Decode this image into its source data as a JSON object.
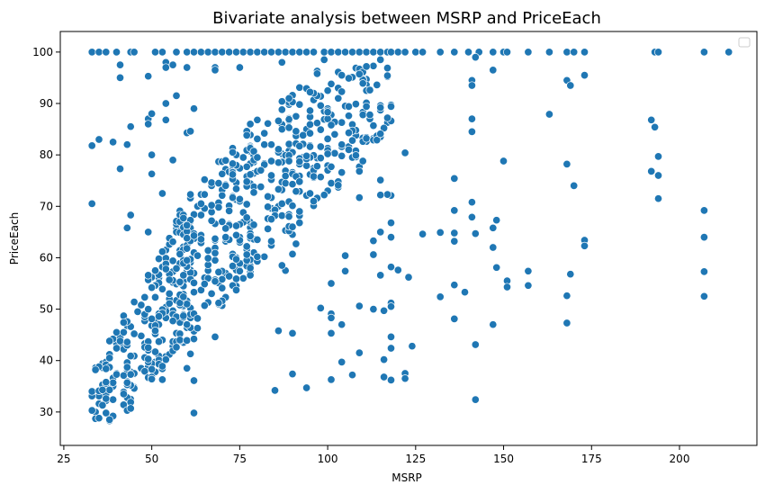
{
  "chart_data": {
    "type": "scatter",
    "title": "Bivariate analysis between MSRP and PriceEach",
    "xlabel": "MSRP",
    "ylabel": "PriceEach",
    "xlim": [
      24,
      222
    ],
    "ylim": [
      23.5,
      104
    ],
    "xticks": [
      25,
      50,
      75,
      100,
      125,
      150,
      175,
      200
    ],
    "yticks": [
      30,
      40,
      50,
      60,
      70,
      80,
      90,
      100
    ],
    "xtick_labels": [
      "25",
      "50",
      "75",
      "100",
      "125",
      "150",
      "175",
      "200"
    ],
    "ytick_labels": [
      "30",
      "40",
      "50",
      "60",
      "70",
      "80",
      "90",
      "100"
    ],
    "grid": false,
    "legend": "top-right (empty)",
    "marker_color": "#1f77b4",
    "series": [
      {
        "values": [
          [
            33,
            100
          ],
          [
            35,
            100
          ],
          [
            37,
            100
          ],
          [
            40,
            100
          ],
          [
            44,
            100
          ],
          [
            45,
            100
          ],
          [
            51,
            100
          ],
          [
            53,
            100
          ],
          [
            57,
            100
          ],
          [
            60,
            100
          ],
          [
            62,
            100
          ],
          [
            64,
            100
          ],
          [
            66,
            100
          ],
          [
            68,
            100
          ],
          [
            70,
            100
          ],
          [
            72,
            100
          ],
          [
            74,
            100
          ],
          [
            76,
            100
          ],
          [
            78,
            100
          ],
          [
            80,
            100
          ],
          [
            82,
            100
          ],
          [
            84,
            100
          ],
          [
            86,
            100
          ],
          [
            88,
            100
          ],
          [
            90,
            100
          ],
          [
            92,
            100
          ],
          [
            94,
            100
          ],
          [
            96,
            100
          ],
          [
            99,
            100
          ],
          [
            101,
            100
          ],
          [
            103,
            100
          ],
          [
            105,
            100
          ],
          [
            107,
            100
          ],
          [
            109,
            100
          ],
          [
            111,
            100
          ],
          [
            113,
            100
          ],
          [
            115,
            100
          ],
          [
            117,
            100
          ],
          [
            118,
            100
          ],
          [
            120,
            100
          ],
          [
            122,
            100
          ],
          [
            125,
            100
          ],
          [
            127,
            100
          ],
          [
            132,
            100
          ],
          [
            136,
            100
          ],
          [
            140,
            100
          ],
          [
            143,
            100
          ],
          [
            147,
            100
          ],
          [
            150,
            100
          ],
          [
            151,
            100
          ],
          [
            157,
            100
          ],
          [
            163,
            100
          ],
          [
            168,
            100
          ],
          [
            170,
            100
          ],
          [
            173,
            100
          ],
          [
            193,
            100
          ],
          [
            194,
            100
          ],
          [
            207,
            100
          ],
          [
            214,
            100
          ],
          [
            41,
            97.5
          ],
          [
            41,
            95
          ],
          [
            54,
            98
          ],
          [
            54,
            97
          ],
          [
            56,
            97.5
          ],
          [
            60,
            97
          ],
          [
            68,
            97
          ],
          [
            75,
            97
          ],
          [
            87,
            98
          ],
          [
            99,
            98.5
          ],
          [
            142,
            99
          ],
          [
            147,
            96.5
          ],
          [
            168,
            94.5
          ],
          [
            169,
            93.5
          ],
          [
            173,
            95.5
          ],
          [
            33,
            81.8
          ],
          [
            33,
            70.5
          ],
          [
            35,
            83
          ],
          [
            39,
            82.5
          ],
          [
            41,
            77.3
          ],
          [
            43,
            82
          ],
          [
            44,
            68.3
          ],
          [
            43,
            65.8
          ],
          [
            44,
            85.5
          ],
          [
            49,
            87
          ],
          [
            49,
            86
          ],
          [
            49,
            95.3
          ],
          [
            50,
            88
          ],
          [
            50,
            80
          ],
          [
            50,
            76.3
          ],
          [
            49,
            65
          ],
          [
            53,
            72.5
          ],
          [
            54,
            86.8
          ],
          [
            54,
            90
          ],
          [
            56,
            79
          ],
          [
            57,
            91.5
          ],
          [
            60,
            84.3
          ],
          [
            61,
            84.6
          ],
          [
            62,
            89
          ],
          [
            68,
            96.5
          ],
          [
            141,
            94.5
          ],
          [
            141,
            93.5
          ],
          [
            141,
            87
          ],
          [
            141,
            84.5
          ],
          [
            163,
            87.9
          ],
          [
            192,
            86.8
          ],
          [
            193,
            85.4
          ],
          [
            192,
            76.8
          ],
          [
            194,
            79.7
          ],
          [
            194,
            76
          ],
          [
            194,
            71.5
          ],
          [
            168,
            78.2
          ],
          [
            170,
            74
          ],
          [
            173,
            63.4
          ],
          [
            173,
            62.3
          ],
          [
            207,
            69.2
          ],
          [
            207,
            64
          ],
          [
            207,
            57.3
          ],
          [
            207,
            52.5
          ],
          [
            168,
            52.6
          ],
          [
            168,
            47.3
          ],
          [
            169,
            56.8
          ],
          [
            157,
            57.4
          ],
          [
            157,
            54.6
          ],
          [
            151,
            55.5
          ],
          [
            151,
            54.3
          ],
          [
            150,
            78.8
          ],
          [
            148,
            67.3
          ],
          [
            147,
            65.8
          ],
          [
            147,
            62
          ],
          [
            147,
            47
          ],
          [
            148,
            58.1
          ],
          [
            142,
            64.7
          ],
          [
            141,
            70.8
          ],
          [
            141,
            67.9
          ],
          [
            142,
            43.1
          ],
          [
            142,
            32.4
          ],
          [
            139,
            53.3
          ],
          [
            136,
            75.4
          ],
          [
            136,
            69.2
          ],
          [
            136,
            64.8
          ],
          [
            136,
            63.2
          ],
          [
            136,
            54.7
          ],
          [
            136,
            48.1
          ],
          [
            132,
            64.9
          ],
          [
            132,
            52.4
          ],
          [
            127,
            64.6
          ],
          [
            123,
            56.2
          ],
          [
            122,
            80.4
          ],
          [
            124,
            42.8
          ],
          [
            122,
            37.5
          ],
          [
            122,
            36.5
          ],
          [
            120,
            57.6
          ],
          [
            118,
            58.2
          ],
          [
            118,
            72.1
          ],
          [
            118,
            66.8
          ],
          [
            118,
            64
          ],
          [
            117,
            72.3
          ],
          [
            118,
            51.2
          ],
          [
            118,
            50.5
          ],
          [
            118,
            44.6
          ],
          [
            118,
            42.4
          ],
          [
            118,
            36.2
          ],
          [
            116,
            85.2
          ],
          [
            117,
            87.2
          ],
          [
            115,
            84.1
          ],
          [
            115,
            75.1
          ],
          [
            115,
            72.2
          ],
          [
            115,
            65
          ],
          [
            115,
            56.6
          ],
          [
            116,
            49.7
          ],
          [
            116,
            40.2
          ],
          [
            116,
            36.8
          ],
          [
            113,
            63.3
          ],
          [
            113,
            60.6
          ],
          [
            113,
            50
          ],
          [
            109,
            71.7
          ],
          [
            109,
            50.6
          ],
          [
            109,
            41.5
          ],
          [
            107,
            37.2
          ],
          [
            105,
            60.4
          ],
          [
            105,
            57.4
          ],
          [
            104,
            47
          ],
          [
            104,
            39.7
          ],
          [
            101,
            55
          ],
          [
            101,
            49.1
          ],
          [
            101,
            48.3
          ],
          [
            101,
            45.3
          ],
          [
            101,
            36.3
          ],
          [
            100,
            73
          ],
          [
            99,
            72.2
          ],
          [
            98,
            50.2
          ],
          [
            95,
            72.5
          ],
          [
            94,
            34.7
          ],
          [
            91,
            62.7
          ],
          [
            90,
            60.7
          ],
          [
            90,
            45.3
          ],
          [
            90,
            37.4
          ],
          [
            88,
            57.5
          ],
          [
            87,
            58.5
          ],
          [
            86,
            45.8
          ],
          [
            85,
            34.2
          ],
          [
            82,
            60.2
          ],
          [
            80,
            59.3
          ],
          [
            80,
            60.2
          ],
          [
            68,
            44.6
          ],
          [
            62,
            44.2
          ],
          [
            62,
            36.1
          ],
          [
            62,
            29.8
          ],
          [
            61,
            41.3
          ],
          [
            60,
            38.5
          ],
          [
            57,
            42.6
          ],
          [
            53,
            38.9
          ],
          [
            53,
            36.3
          ],
          [
            50,
            36.4
          ],
          [
            49,
            42.5
          ],
          [
            44,
            31.9
          ],
          [
            44,
            30.7
          ]
        ]
      }
    ],
    "dense_bands": [
      {
        "x": [
          33,
          48
        ],
        "ylo": [
          26.5,
          32
        ],
        "yhi": [
          38,
          55
        ],
        "points": 95
      },
      {
        "x": [
          48,
          62
        ],
        "ylo": [
          35,
          45
        ],
        "yhi": [
          55,
          75
        ],
        "points": 150
      },
      {
        "x": [
          58,
          80
        ],
        "ylo": [
          42,
          58
        ],
        "yhi": [
          70,
          88
        ],
        "points": 160
      },
      {
        "x": [
          72,
          98
        ],
        "ylo": [
          55,
          68
        ],
        "yhi": [
          82,
          98
        ],
        "points": 140
      },
      {
        "x": [
          88,
          112
        ],
        "ylo": [
          66,
          78
        ],
        "yhi": [
          92,
          99.5
        ],
        "points": 90
      },
      {
        "x": [
          98,
          118
        ],
        "ylo": [
          76,
          84
        ],
        "yhi": [
          95,
          99.5
        ],
        "points": 55
      }
    ]
  }
}
